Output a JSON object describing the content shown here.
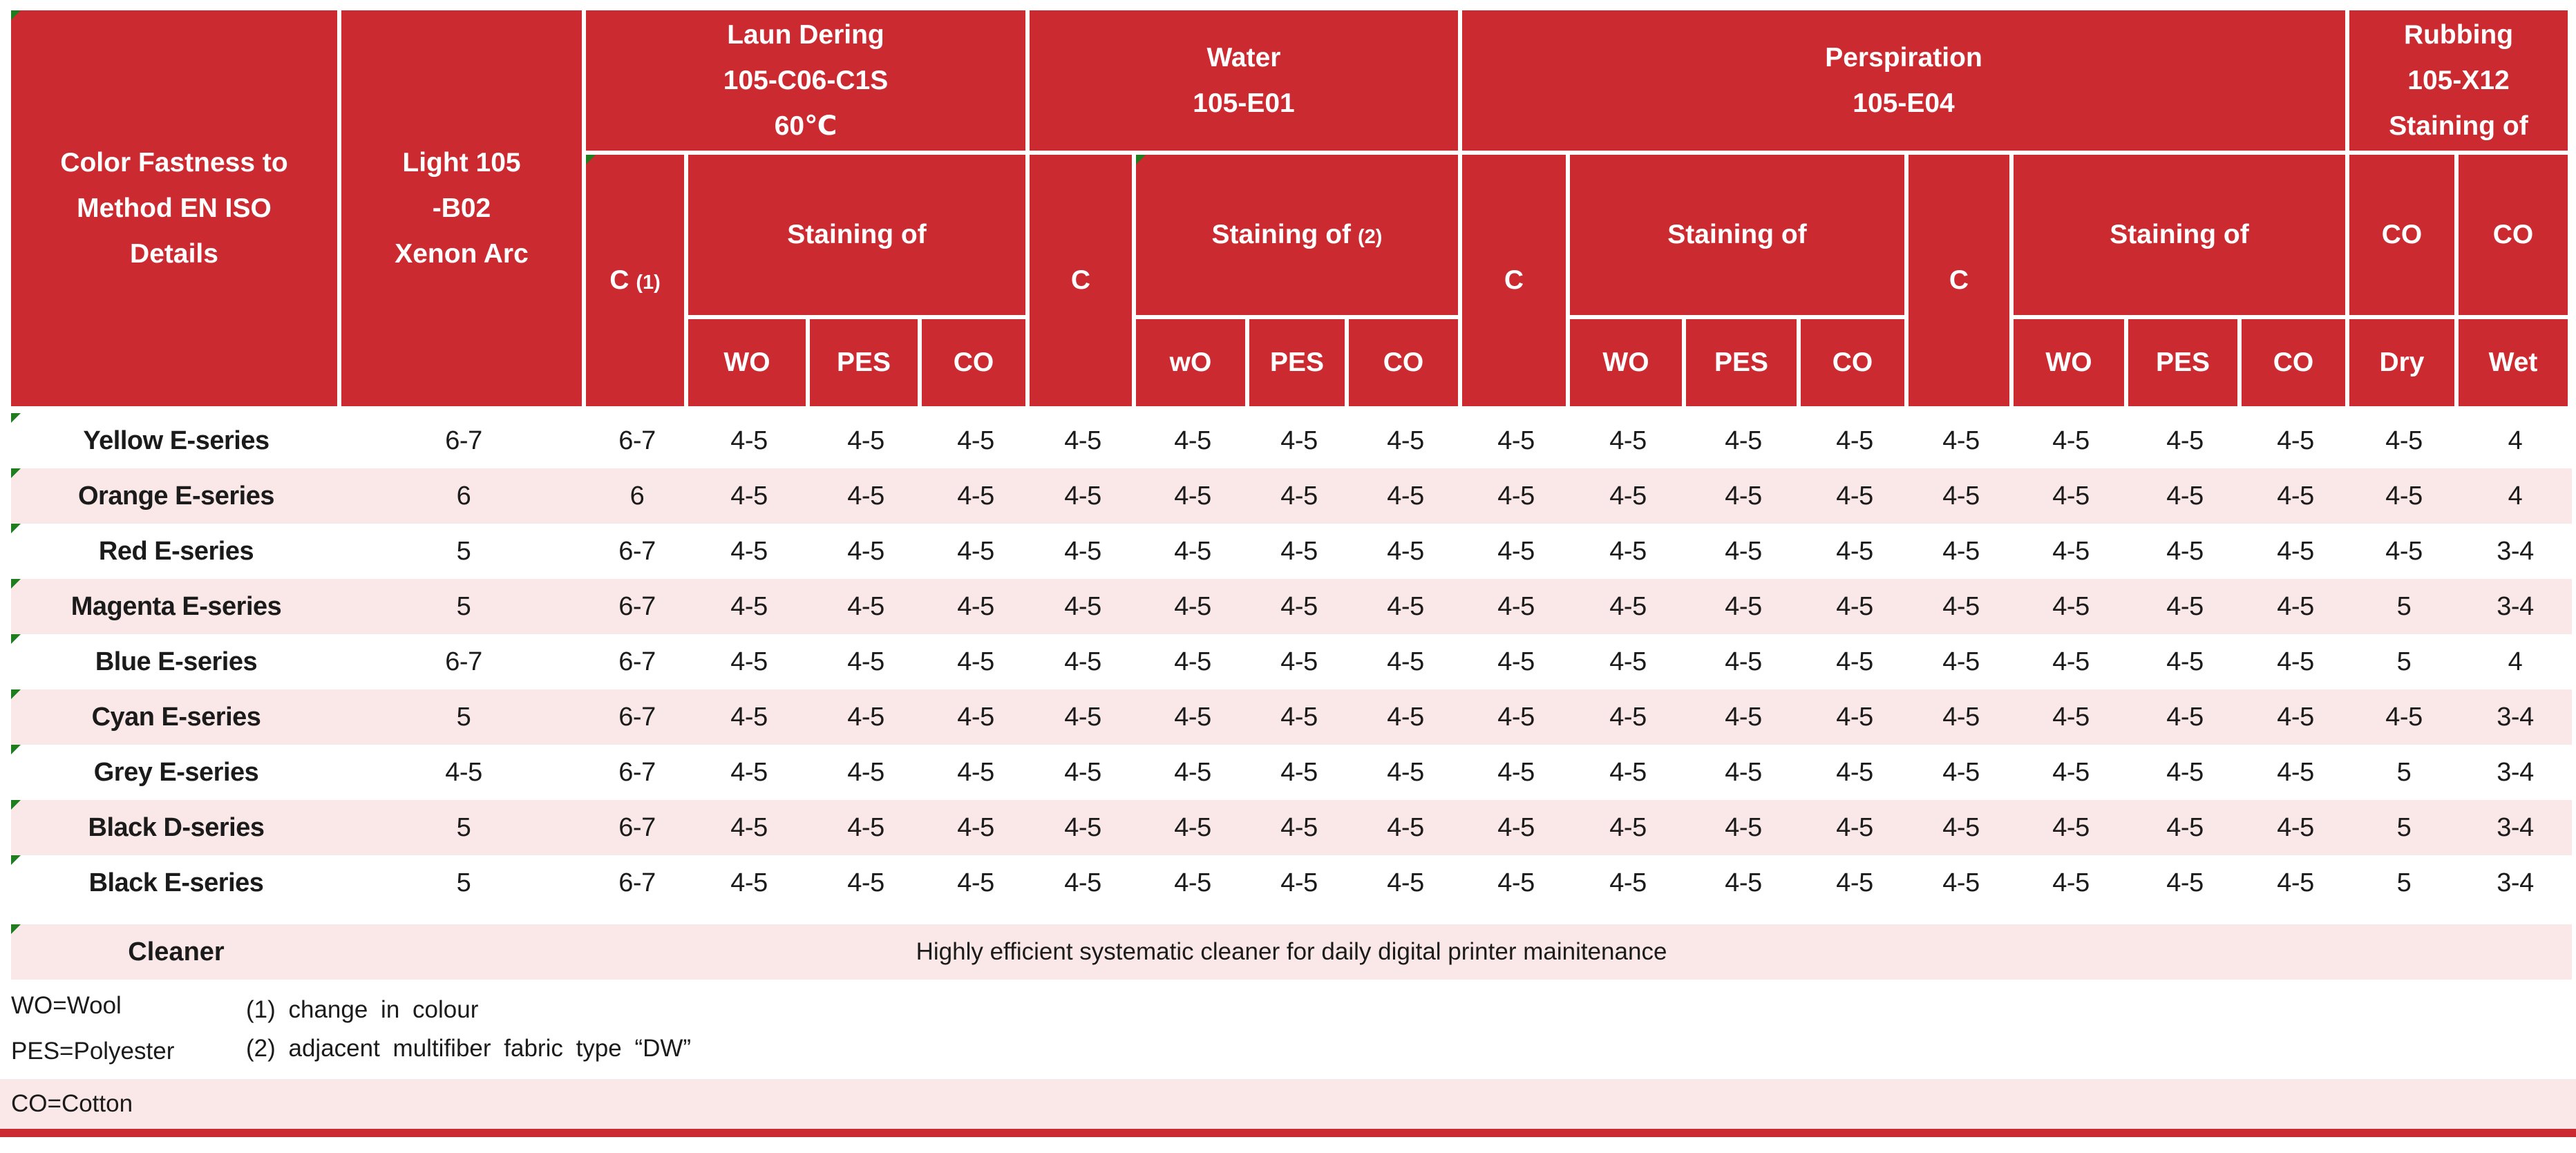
{
  "colors": {
    "header_red": "#cb2a30",
    "row_pink": "#fae8e8",
    "text": "#1b1b1b",
    "flag_green": "#1f7d1f"
  },
  "header": {
    "corner": [
      "Color Fastness to",
      "Method EN ISO",
      "Details"
    ],
    "light": [
      "Light 105",
      "-B02",
      "Xenon Arc"
    ],
    "laundering": {
      "title": [
        "Laun Dering",
        "105-C06-C1S",
        "60℃"
      ],
      "c": "C",
      "c_note": "(1)",
      "staining": "Staining of",
      "wo": "WO",
      "pes": "PES",
      "co": "CO"
    },
    "water": {
      "title": [
        "Water",
        "105-E01"
      ],
      "c": "C",
      "staining": "Staining of",
      "staining_note": "(2)",
      "wo": "wO",
      "pes": "PES",
      "co": "CO"
    },
    "perspiration": {
      "title": [
        "Perspiration",
        "105-E04"
      ],
      "c1": "C",
      "staining1": "Staining of",
      "wo1": "WO",
      "pes1": "PES",
      "co1": "CO",
      "c2": "C",
      "staining2": "Staining of",
      "wo2": "WO",
      "pes2": "PES",
      "co2": "CO"
    },
    "rubbing": {
      "title": [
        "Rubbing",
        "105-X12",
        "Staining of"
      ],
      "co1": "CO",
      "co2": "CO",
      "dry": "Dry",
      "wet": "Wet"
    }
  },
  "rows": [
    {
      "name": "Yellow E-series",
      "values": [
        "6-7",
        "6-7",
        "4-5",
        "4-5",
        "4-5",
        "4-5",
        "4-5",
        "4-5",
        "4-5",
        "4-5",
        "4-5",
        "4-5",
        "4-5",
        "4-5",
        "4-5",
        "4-5",
        "4-5",
        "4-5",
        "4"
      ]
    },
    {
      "name": "Orange E-series",
      "values": [
        "6",
        "6",
        "4-5",
        "4-5",
        "4-5",
        "4-5",
        "4-5",
        "4-5",
        "4-5",
        "4-5",
        "4-5",
        "4-5",
        "4-5",
        "4-5",
        "4-5",
        "4-5",
        "4-5",
        "4-5",
        "4"
      ]
    },
    {
      "name": "Red E-series",
      "values": [
        "5",
        "6-7",
        "4-5",
        "4-5",
        "4-5",
        "4-5",
        "4-5",
        "4-5",
        "4-5",
        "4-5",
        "4-5",
        "4-5",
        "4-5",
        "4-5",
        "4-5",
        "4-5",
        "4-5",
        "4-5",
        "3-4"
      ]
    },
    {
      "name": "Magenta E-series",
      "values": [
        "5",
        "6-7",
        "4-5",
        "4-5",
        "4-5",
        "4-5",
        "4-5",
        "4-5",
        "4-5",
        "4-5",
        "4-5",
        "4-5",
        "4-5",
        "4-5",
        "4-5",
        "4-5",
        "4-5",
        "5",
        "3-4"
      ]
    },
    {
      "name": "Blue E-series",
      "values": [
        "6-7",
        "6-7",
        "4-5",
        "4-5",
        "4-5",
        "4-5",
        "4-5",
        "4-5",
        "4-5",
        "4-5",
        "4-5",
        "4-5",
        "4-5",
        "4-5",
        "4-5",
        "4-5",
        "4-5",
        "5",
        "4"
      ]
    },
    {
      "name": "Cyan E-series",
      "values": [
        "5",
        "6-7",
        "4-5",
        "4-5",
        "4-5",
        "4-5",
        "4-5",
        "4-5",
        "4-5",
        "4-5",
        "4-5",
        "4-5",
        "4-5",
        "4-5",
        "4-5",
        "4-5",
        "4-5",
        "4-5",
        "3-4"
      ]
    },
    {
      "name": "Grey E-series",
      "values": [
        "4-5",
        "6-7",
        "4-5",
        "4-5",
        "4-5",
        "4-5",
        "4-5",
        "4-5",
        "4-5",
        "4-5",
        "4-5",
        "4-5",
        "4-5",
        "4-5",
        "4-5",
        "4-5",
        "4-5",
        "5",
        "3-4"
      ]
    },
    {
      "name": "Black D-series",
      "values": [
        "5",
        "6-7",
        "4-5",
        "4-5",
        "4-5",
        "4-5",
        "4-5",
        "4-5",
        "4-5",
        "4-5",
        "4-5",
        "4-5",
        "4-5",
        "4-5",
        "4-5",
        "4-5",
        "4-5",
        "5",
        "3-4"
      ]
    },
    {
      "name": "Black E-series",
      "values": [
        "5",
        "6-7",
        "4-5",
        "4-5",
        "4-5",
        "4-5",
        "4-5",
        "4-5",
        "4-5",
        "4-5",
        "4-5",
        "4-5",
        "4-5",
        "4-5",
        "4-5",
        "4-5",
        "4-5",
        "5",
        "3-4"
      ]
    }
  ],
  "cleaner": {
    "name": "Cleaner",
    "description": "Highly efficient systematic cleaner for daily digital printer mainitenance"
  },
  "footnotes": {
    "wo": "WO=Wool",
    "pes": "PES=Polyester",
    "co": "CO=Cotton",
    "note1": "(1) change in colour",
    "note2": "(2) adjacent multifiber fabric type “DW”"
  }
}
